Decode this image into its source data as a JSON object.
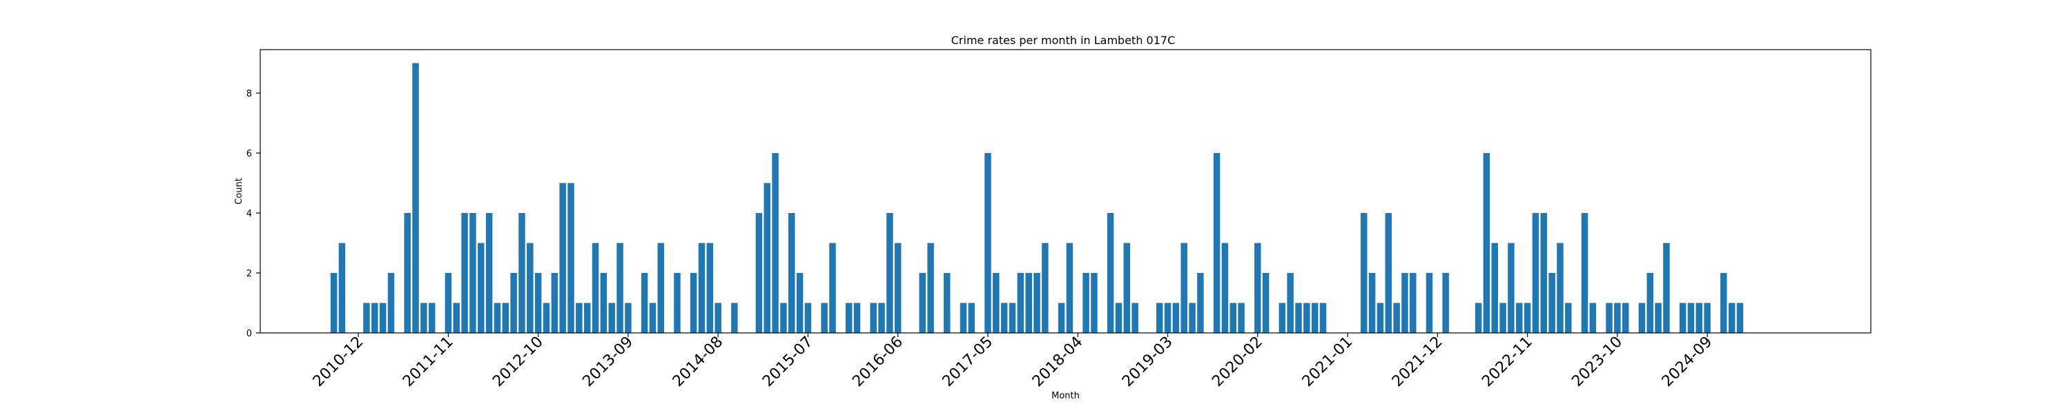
{
  "chart_data": {
    "type": "bar",
    "title": "Crime rates per month in Lambeth 017C",
    "xlabel": "Month",
    "ylabel": "Count",
    "ylim": [
      0,
      9.45
    ],
    "yticks": [
      0,
      2,
      4,
      6,
      8
    ],
    "x_range_months": [
      "2009-12",
      "2026-05"
    ],
    "xticks": [
      "2010-12",
      "2011-11",
      "2012-10",
      "2013-09",
      "2014-08",
      "2015-07",
      "2016-06",
      "2017-05",
      "2018-04",
      "2019-03",
      "2020-02",
      "2021-01",
      "2021-12",
      "2022-11",
      "2023-10",
      "2024-09"
    ],
    "grid": false,
    "bar_color": "#1f77b4",
    "bars": [
      {
        "month": "2010-09",
        "value": 2
      },
      {
        "month": "2010-10",
        "value": 3
      },
      {
        "month": "2011-01",
        "value": 1
      },
      {
        "month": "2011-02",
        "value": 1
      },
      {
        "month": "2011-03",
        "value": 1
      },
      {
        "month": "2011-04",
        "value": 2
      },
      {
        "month": "2011-06",
        "value": 4
      },
      {
        "month": "2011-07",
        "value": 9
      },
      {
        "month": "2011-08",
        "value": 1
      },
      {
        "month": "2011-09",
        "value": 1
      },
      {
        "month": "2011-11",
        "value": 2
      },
      {
        "month": "2011-12",
        "value": 1
      },
      {
        "month": "2012-01",
        "value": 4
      },
      {
        "month": "2012-02",
        "value": 4
      },
      {
        "month": "2012-03",
        "value": 3
      },
      {
        "month": "2012-04",
        "value": 4
      },
      {
        "month": "2012-05",
        "value": 1
      },
      {
        "month": "2012-06",
        "value": 1
      },
      {
        "month": "2012-07",
        "value": 2
      },
      {
        "month": "2012-08",
        "value": 4
      },
      {
        "month": "2012-09",
        "value": 3
      },
      {
        "month": "2012-10",
        "value": 2
      },
      {
        "month": "2012-11",
        "value": 1
      },
      {
        "month": "2012-12",
        "value": 2
      },
      {
        "month": "2013-01",
        "value": 5
      },
      {
        "month": "2013-02",
        "value": 5
      },
      {
        "month": "2013-03",
        "value": 1
      },
      {
        "month": "2013-04",
        "value": 1
      },
      {
        "month": "2013-05",
        "value": 3
      },
      {
        "month": "2013-06",
        "value": 2
      },
      {
        "month": "2013-07",
        "value": 1
      },
      {
        "month": "2013-08",
        "value": 3
      },
      {
        "month": "2013-09",
        "value": 1
      },
      {
        "month": "2013-11",
        "value": 2
      },
      {
        "month": "2013-12",
        "value": 1
      },
      {
        "month": "2014-01",
        "value": 3
      },
      {
        "month": "2014-03",
        "value": 2
      },
      {
        "month": "2014-05",
        "value": 2
      },
      {
        "month": "2014-06",
        "value": 3
      },
      {
        "month": "2014-07",
        "value": 3
      },
      {
        "month": "2014-08",
        "value": 1
      },
      {
        "month": "2014-10",
        "value": 1
      },
      {
        "month": "2015-01",
        "value": 4
      },
      {
        "month": "2015-02",
        "value": 5
      },
      {
        "month": "2015-03",
        "value": 6
      },
      {
        "month": "2015-04",
        "value": 1
      },
      {
        "month": "2015-05",
        "value": 4
      },
      {
        "month": "2015-06",
        "value": 2
      },
      {
        "month": "2015-07",
        "value": 1
      },
      {
        "month": "2015-09",
        "value": 1
      },
      {
        "month": "2015-10",
        "value": 3
      },
      {
        "month": "2015-12",
        "value": 1
      },
      {
        "month": "2016-01",
        "value": 1
      },
      {
        "month": "2016-03",
        "value": 1
      },
      {
        "month": "2016-04",
        "value": 1
      },
      {
        "month": "2016-05",
        "value": 4
      },
      {
        "month": "2016-06",
        "value": 3
      },
      {
        "month": "2016-09",
        "value": 2
      },
      {
        "month": "2016-10",
        "value": 3
      },
      {
        "month": "2016-12",
        "value": 2
      },
      {
        "month": "2017-02",
        "value": 1
      },
      {
        "month": "2017-03",
        "value": 1
      },
      {
        "month": "2017-05",
        "value": 6
      },
      {
        "month": "2017-06",
        "value": 2
      },
      {
        "month": "2017-07",
        "value": 1
      },
      {
        "month": "2017-08",
        "value": 1
      },
      {
        "month": "2017-09",
        "value": 2
      },
      {
        "month": "2017-10",
        "value": 2
      },
      {
        "month": "2017-11",
        "value": 2
      },
      {
        "month": "2017-12",
        "value": 3
      },
      {
        "month": "2018-02",
        "value": 1
      },
      {
        "month": "2018-03",
        "value": 3
      },
      {
        "month": "2018-05",
        "value": 2
      },
      {
        "month": "2018-06",
        "value": 2
      },
      {
        "month": "2018-08",
        "value": 4
      },
      {
        "month": "2018-09",
        "value": 1
      },
      {
        "month": "2018-10",
        "value": 3
      },
      {
        "month": "2018-11",
        "value": 1
      },
      {
        "month": "2019-02",
        "value": 1
      },
      {
        "month": "2019-03",
        "value": 1
      },
      {
        "month": "2019-04",
        "value": 1
      },
      {
        "month": "2019-05",
        "value": 3
      },
      {
        "month": "2019-06",
        "value": 1
      },
      {
        "month": "2019-07",
        "value": 2
      },
      {
        "month": "2019-09",
        "value": 6
      },
      {
        "month": "2019-10",
        "value": 3
      },
      {
        "month": "2019-11",
        "value": 1
      },
      {
        "month": "2019-12",
        "value": 1
      },
      {
        "month": "2020-02",
        "value": 3
      },
      {
        "month": "2020-03",
        "value": 2
      },
      {
        "month": "2020-05",
        "value": 1
      },
      {
        "month": "2020-06",
        "value": 2
      },
      {
        "month": "2020-07",
        "value": 1
      },
      {
        "month": "2020-08",
        "value": 1
      },
      {
        "month": "2020-09",
        "value": 1
      },
      {
        "month": "2020-10",
        "value": 1
      },
      {
        "month": "2021-03",
        "value": 4
      },
      {
        "month": "2021-04",
        "value": 2
      },
      {
        "month": "2021-05",
        "value": 1
      },
      {
        "month": "2021-06",
        "value": 4
      },
      {
        "month": "2021-07",
        "value": 1
      },
      {
        "month": "2021-08",
        "value": 2
      },
      {
        "month": "2021-09",
        "value": 2
      },
      {
        "month": "2021-11",
        "value": 2
      },
      {
        "month": "2022-01",
        "value": 2
      },
      {
        "month": "2022-05",
        "value": 1
      },
      {
        "month": "2022-06",
        "value": 6
      },
      {
        "month": "2022-07",
        "value": 3
      },
      {
        "month": "2022-08",
        "value": 1
      },
      {
        "month": "2022-09",
        "value": 3
      },
      {
        "month": "2022-10",
        "value": 1
      },
      {
        "month": "2022-11",
        "value": 1
      },
      {
        "month": "2022-12",
        "value": 4
      },
      {
        "month": "2023-01",
        "value": 4
      },
      {
        "month": "2023-02",
        "value": 2
      },
      {
        "month": "2023-03",
        "value": 3
      },
      {
        "month": "2023-04",
        "value": 1
      },
      {
        "month": "2023-06",
        "value": 4
      },
      {
        "month": "2023-07",
        "value": 1
      },
      {
        "month": "2023-09",
        "value": 1
      },
      {
        "month": "2023-10",
        "value": 1
      },
      {
        "month": "2023-11",
        "value": 1
      },
      {
        "month": "2024-01",
        "value": 1
      },
      {
        "month": "2024-02",
        "value": 2
      },
      {
        "month": "2024-03",
        "value": 1
      },
      {
        "month": "2024-04",
        "value": 3
      },
      {
        "month": "2024-06",
        "value": 1
      },
      {
        "month": "2024-07",
        "value": 1
      },
      {
        "month": "2024-08",
        "value": 1
      },
      {
        "month": "2024-09",
        "value": 1
      },
      {
        "month": "2024-11",
        "value": 2
      },
      {
        "month": "2024-12",
        "value": 1
      },
      {
        "month": "2025-01",
        "value": 1
      }
    ]
  }
}
